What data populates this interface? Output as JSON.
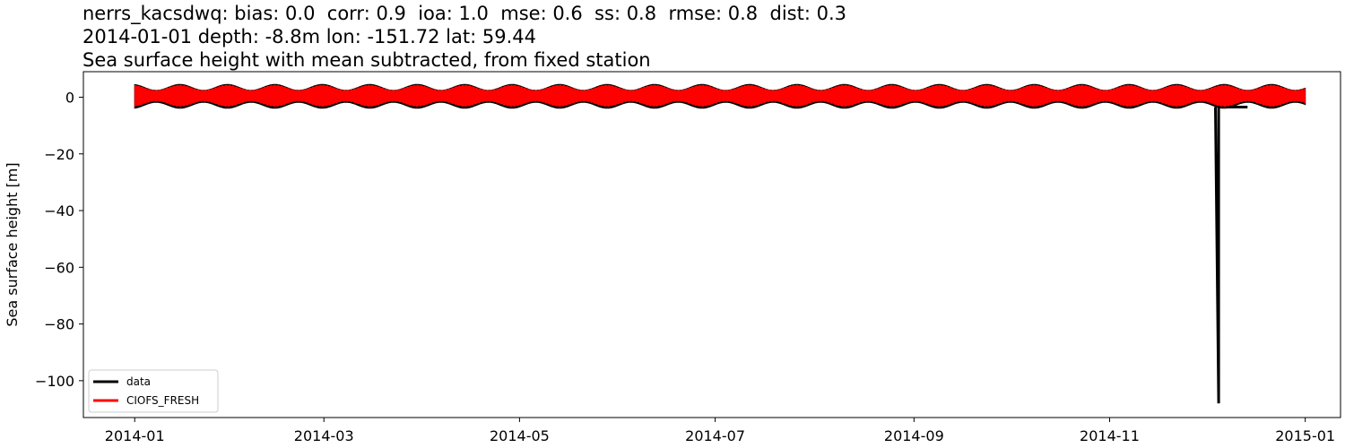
{
  "title_lines": [
    "nerrs_kacsdwq: bias: 0.0  corr: 0.9  ioa: 1.0  mse: 0.6  ss: 0.8  rmse: 0.8  dist: 0.3",
    "2014-01-01 depth: -8.8m lon: -151.72 lat: 59.44",
    "Sea surface height with mean subtracted, from fixed station"
  ],
  "chart_data": {
    "type": "line",
    "title": "nerrs_kacsdwq: bias: 0.0  corr: 0.9  ioa: 1.0  mse: 0.6  ss: 0.8  rmse: 0.8  dist: 0.3\n2014-01-01 depth: -8.8m lon: -151.72 lat: 59.44\nSea surface height with mean subtracted, from fixed station",
    "xlabel": "",
    "ylabel": "Sea surface height [m]",
    "x_type": "date",
    "xlim": [
      "2013-12-16",
      "2015-01-12"
    ],
    "ylim": [
      -113,
      9
    ],
    "x_ticks": [
      "2014-01",
      "2014-03",
      "2014-05",
      "2014-07",
      "2014-09",
      "2014-11",
      "2015-01"
    ],
    "y_ticks": [
      0,
      -20,
      -40,
      -60,
      -80,
      -100
    ],
    "y_tick_labels": [
      "0",
      "−20",
      "−40",
      "−60",
      "−80",
      "−100"
    ],
    "x_range": [
      "2014-01-01",
      "2015-01-01"
    ],
    "tidal_signal": {
      "mean": 0.4,
      "spring_amplitude_m": 4.0,
      "neap_amplitude_m": 2.0,
      "spring_neap_period_days": 14.8
    },
    "series": [
      {
        "name": "data",
        "color": "#000000",
        "description_points": [
          {
            "x": "2014-12-04",
            "y": -3.5
          },
          {
            "x": "2014-12-05",
            "y": -108
          },
          {
            "x": "2014-12-05",
            "y": -3.5
          },
          {
            "x": "2014-12-14",
            "y": -3.5
          }
        ]
      },
      {
        "name": "CIOFS_FRESH",
        "color": "#ff0000"
      }
    ],
    "legend": {
      "placement": "lower-left",
      "entries": [
        {
          "label": "data",
          "color": "#000000"
        },
        {
          "label": "CIOFS_FRESH",
          "color": "#ff0000"
        }
      ]
    },
    "grid": false
  }
}
